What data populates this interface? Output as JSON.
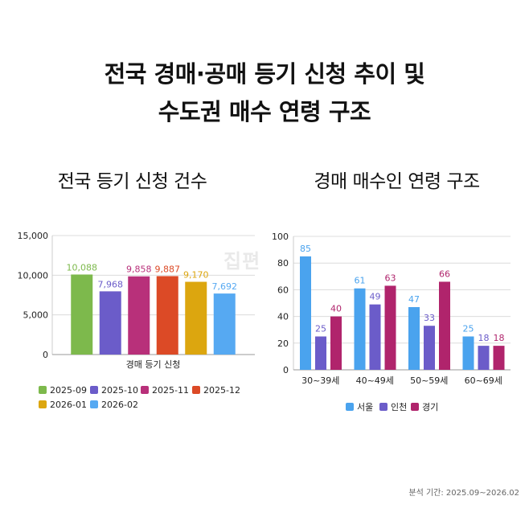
{
  "title_line1": "전국 경매·공매 등기 신청 추이 및",
  "title_line2": "수도권 매수 연령 구조",
  "watermark_text": "집편",
  "footnote": "분석 기간: 2025.09~2026.02",
  "chart_data": [
    {
      "type": "bar",
      "title": "전국 등기 신청 건수",
      "categories": [
        "경매 등기 신청"
      ],
      "ylim": [
        0,
        15000
      ],
      "yticks": [
        "0",
        "5,000",
        "10,000",
        "15,000"
      ],
      "ytick_values": [
        0,
        5000,
        10000,
        15000
      ],
      "grid": true,
      "legend": "bottom",
      "series": [
        {
          "name": "2025-09",
          "values": [
            10088
          ],
          "label": "10,088",
          "color": "#7db94c"
        },
        {
          "name": "2025-10",
          "values": [
            7968
          ],
          "label": "7,968",
          "color": "#6b5cc9"
        },
        {
          "name": "2025-11",
          "values": [
            9858
          ],
          "label": "9,858",
          "color": "#b8307a"
        },
        {
          "name": "2025-12",
          "values": [
            9887
          ],
          "label": "9,887",
          "color": "#dc4a26"
        },
        {
          "name": "2026-01",
          "values": [
            9170
          ],
          "label": "9,170",
          "color": "#dca60f"
        },
        {
          "name": "2026-02",
          "values": [
            7692
          ],
          "label": "7,692",
          "color": "#56a9f2"
        }
      ]
    },
    {
      "type": "bar",
      "title": "경매 매수인 연령 구조",
      "categories": [
        "30~39세",
        "40~49세",
        "50~59세",
        "60~69세"
      ],
      "ylim": [
        0,
        100
      ],
      "yticks": [
        "0",
        "20",
        "40",
        "60",
        "80",
        "100"
      ],
      "ytick_values": [
        0,
        20,
        40,
        60,
        80,
        100
      ],
      "grid": true,
      "legend": "bottom",
      "series": [
        {
          "name": "서울",
          "values": [
            85,
            61,
            47,
            25
          ],
          "labels": [
            "85",
            "61",
            "47",
            "25"
          ],
          "color": "#4aa3ee"
        },
        {
          "name": "인천",
          "values": [
            25,
            49,
            33,
            18
          ],
          "labels": [
            "25",
            "49",
            "33",
            "18"
          ],
          "color": "#6b5cc9"
        },
        {
          "name": "경기",
          "values": [
            40,
            63,
            66,
            18
          ],
          "labels": [
            "40",
            "63",
            "66",
            "18"
          ],
          "color": "#b0246c"
        }
      ]
    }
  ]
}
